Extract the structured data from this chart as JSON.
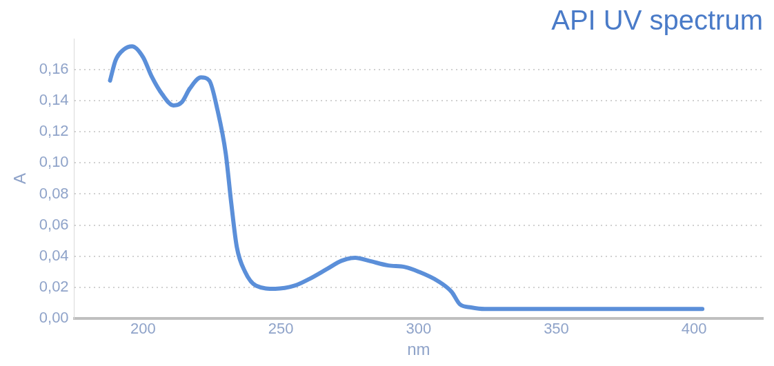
{
  "chart_data": {
    "type": "line",
    "title": "API UV spectrum",
    "xlabel": "nm",
    "ylabel": "A",
    "xlim": [
      175,
      425
    ],
    "xticks": [
      200,
      250,
      300,
      350,
      400
    ],
    "ylim": [
      0,
      0.18
    ],
    "yticks": [
      {
        "value": 0,
        "label": "0,00"
      },
      {
        "value": 0.02,
        "label": "0,02"
      },
      {
        "value": 0.04,
        "label": "0,04"
      },
      {
        "value": 0.06,
        "label": "0,06"
      },
      {
        "value": 0.08,
        "label": "0,08"
      },
      {
        "value": 0.1,
        "label": "0,10"
      },
      {
        "value": 0.12,
        "label": "0,12"
      },
      {
        "value": 0.14,
        "label": "0,14"
      },
      {
        "value": 0.16,
        "label": "0,16"
      }
    ],
    "grid": "y",
    "legend": false,
    "marker": "none",
    "line_style": "solid",
    "series": [
      {
        "color": "#5b8fd9",
        "x": [
          188,
          190,
          193,
          196,
          200,
          203,
          207,
          211,
          214,
          217,
          221,
          224,
          227,
          230,
          232,
          234,
          237,
          241,
          248,
          255,
          260,
          267,
          272,
          277,
          282,
          289,
          295,
          300,
          307,
          312,
          315,
          319,
          324,
          403
        ],
        "values": [
          0.153,
          0.166,
          0.173,
          0.175,
          0.168,
          0.156,
          0.144,
          0.137,
          0.139,
          0.148,
          0.155,
          0.153,
          0.134,
          0.106,
          0.074,
          0.046,
          0.03,
          0.021,
          0.019,
          0.021,
          0.025,
          0.032,
          0.037,
          0.039,
          0.037,
          0.034,
          0.033,
          0.03,
          0.024,
          0.017,
          0.009,
          0.007,
          0.006,
          0.006
        ]
      }
    ]
  }
}
